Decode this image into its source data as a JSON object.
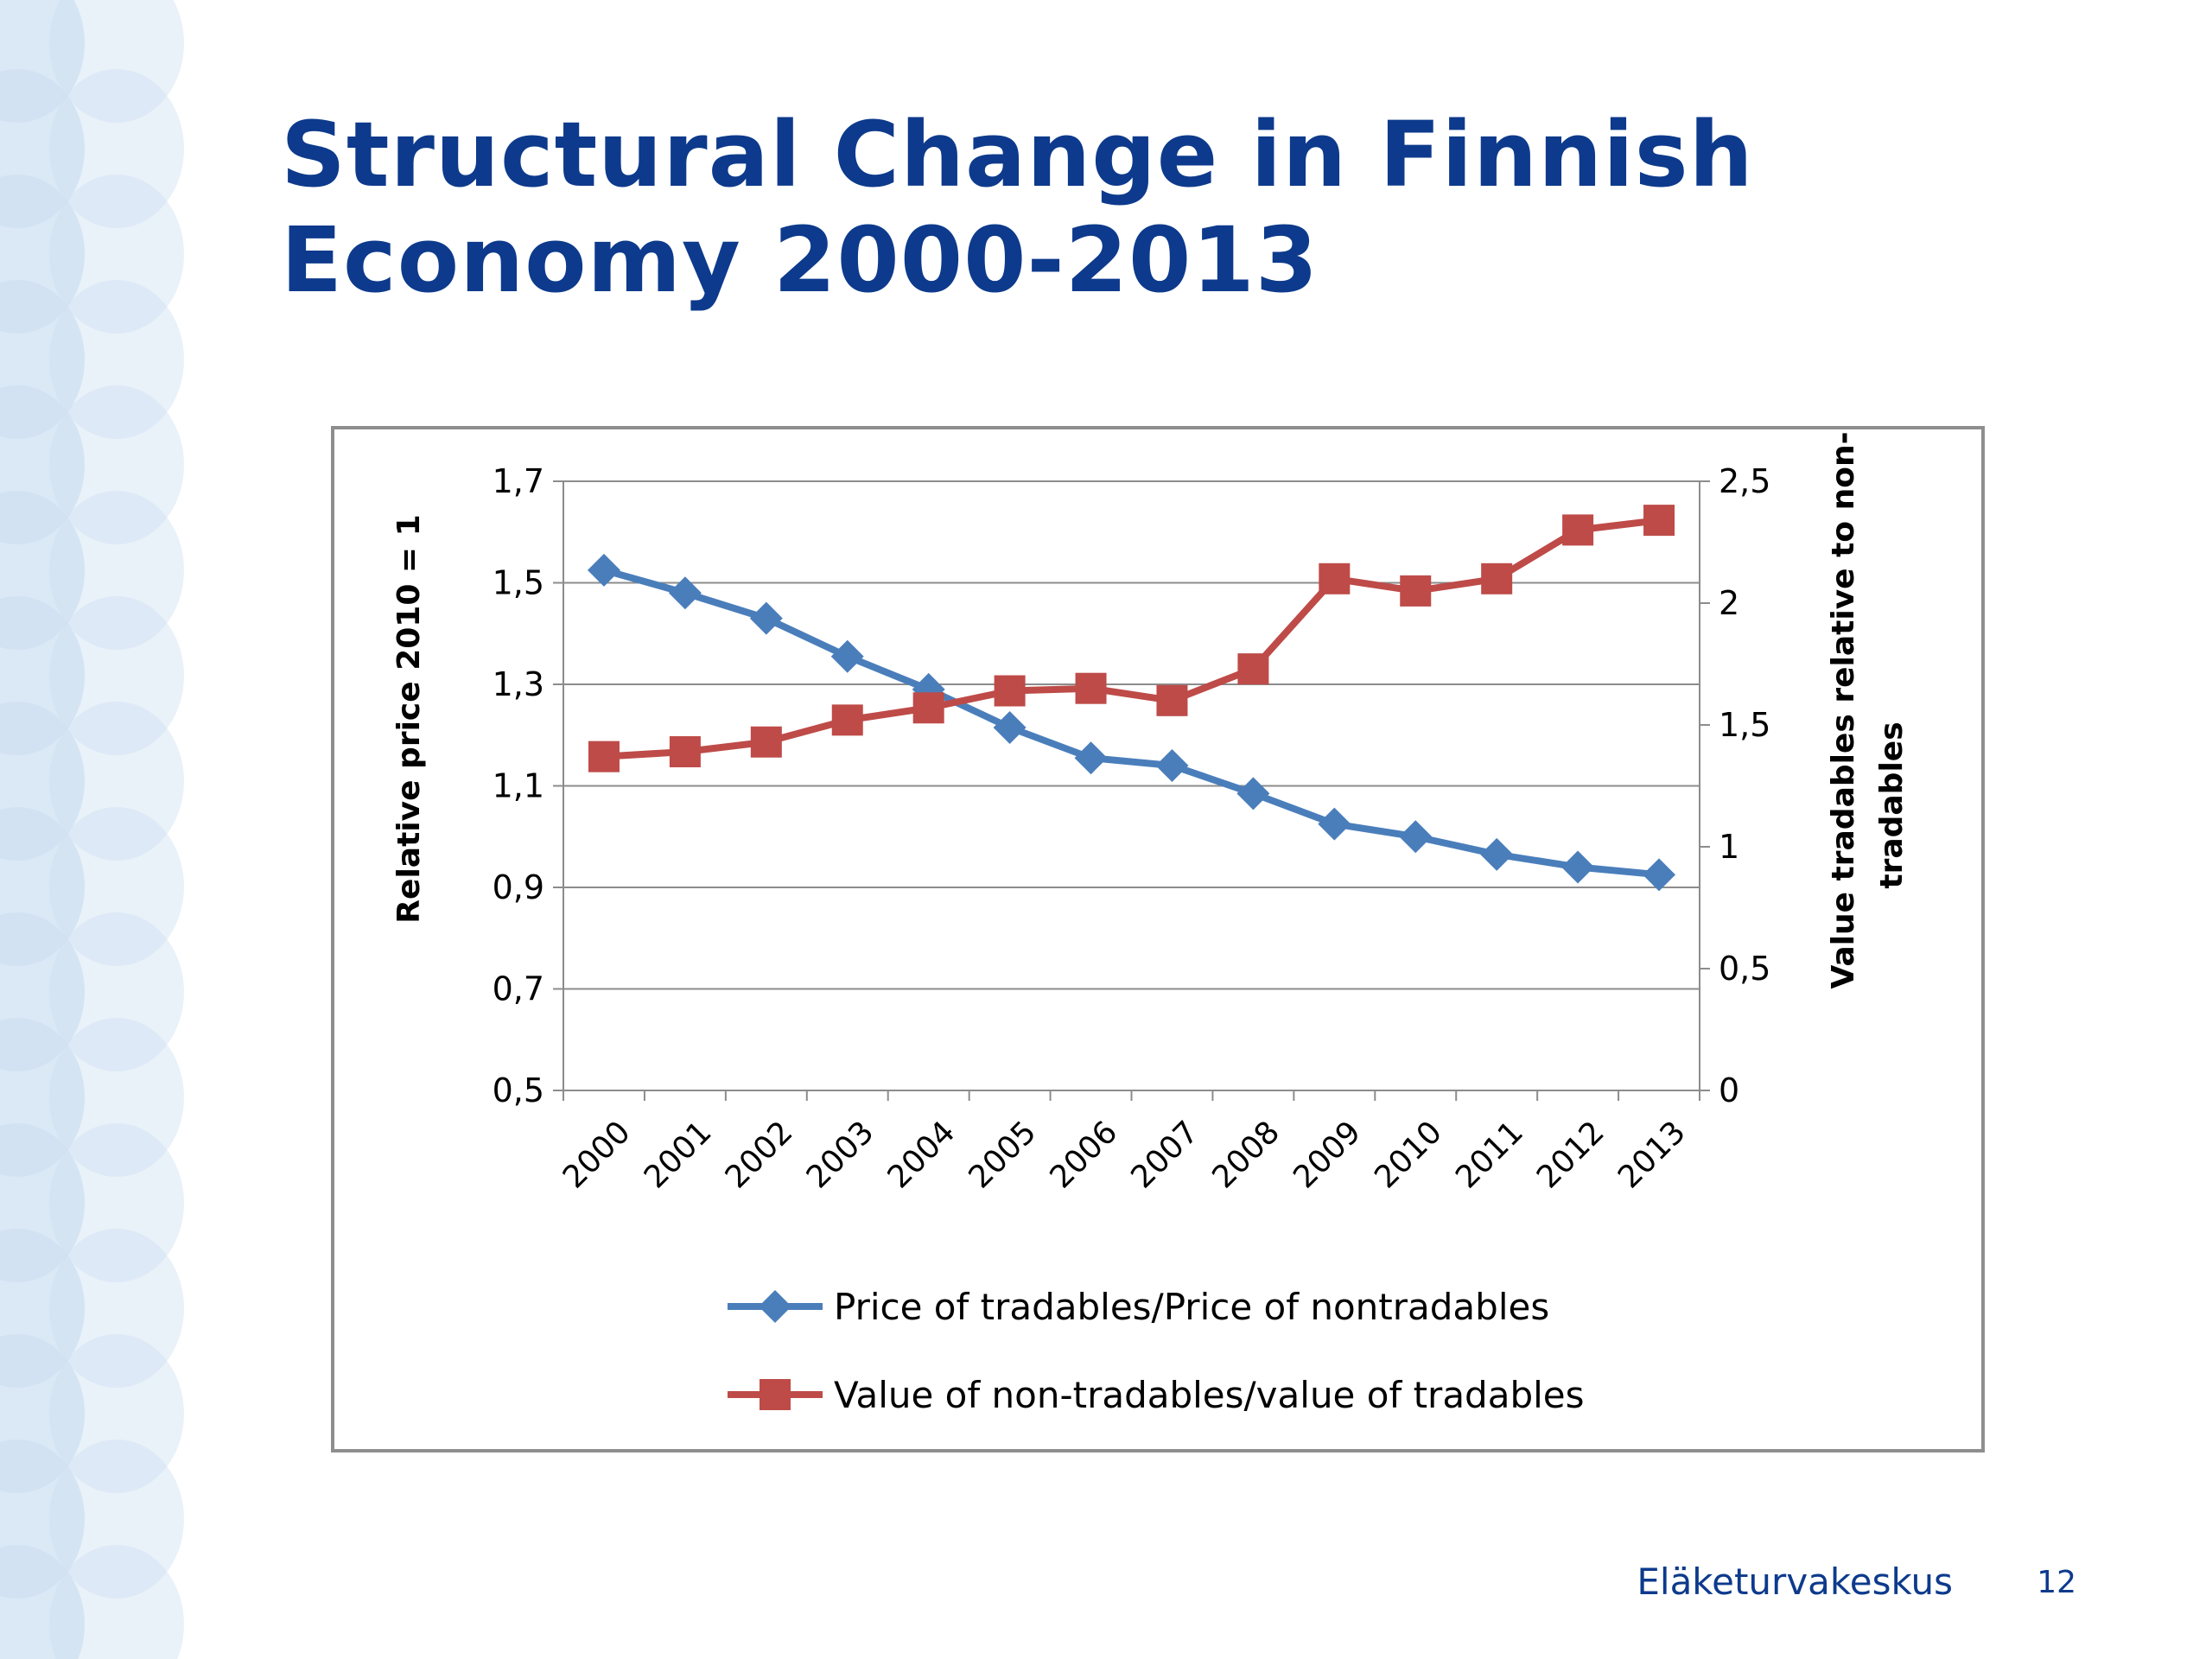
{
  "slide": {
    "title_line1": "Structural Change in Finnish",
    "title_line2": "Economy 2000-2013",
    "footer_brand": "Eläketurvakeskus",
    "page_number": "12"
  },
  "colors": {
    "title": "#0d3a8c",
    "series_blue": "#4a7ebb",
    "series_red": "#be4b48",
    "background_circles": "#cfe0f2"
  },
  "chart_data": {
    "type": "line",
    "title": "",
    "xlabel": "",
    "ylabel": "Relative price 2010 = 1",
    "y2label_line1": "Value tradables relative to non-",
    "y2label_line2": "tradables",
    "categories": [
      "2000",
      "2001",
      "2002",
      "2003",
      "2004",
      "2005",
      "2006",
      "2007",
      "2008",
      "2009",
      "2010",
      "2011",
      "2012",
      "2013"
    ],
    "ylim": [
      0.5,
      1.7
    ],
    "y_ticks": [
      "1,7",
      "1,5",
      "1,3",
      "1,1",
      "0,9",
      "0,7",
      "0,5"
    ],
    "y_tick_values": [
      1.7,
      1.5,
      1.3,
      1.1,
      0.9,
      0.7,
      0.5
    ],
    "y2lim": [
      0,
      2.5
    ],
    "y2_ticks": [
      "2,5",
      "2",
      "1,5",
      "1",
      "0,5",
      "0"
    ],
    "y2_tick_values": [
      2.5,
      2,
      1.5,
      1,
      0.5,
      0
    ],
    "grid": true,
    "legend_position": "bottom",
    "series": [
      {
        "name": "Price of tradables/Price of nontradables",
        "axis": "left",
        "marker": "diamond",
        "values": [
          1.525,
          1.48,
          1.43,
          1.355,
          1.29,
          1.215,
          1.155,
          1.14,
          1.085,
          1.025,
          1.0,
          0.965,
          0.94,
          0.925
        ]
      },
      {
        "name": "Value of non-tradables/value of tradables",
        "axis": "right",
        "marker": "square",
        "values": [
          1.37,
          1.39,
          1.43,
          1.52,
          1.57,
          1.64,
          1.65,
          1.6,
          1.73,
          2.1,
          2.05,
          2.1,
          2.3,
          2.34
        ]
      }
    ]
  }
}
